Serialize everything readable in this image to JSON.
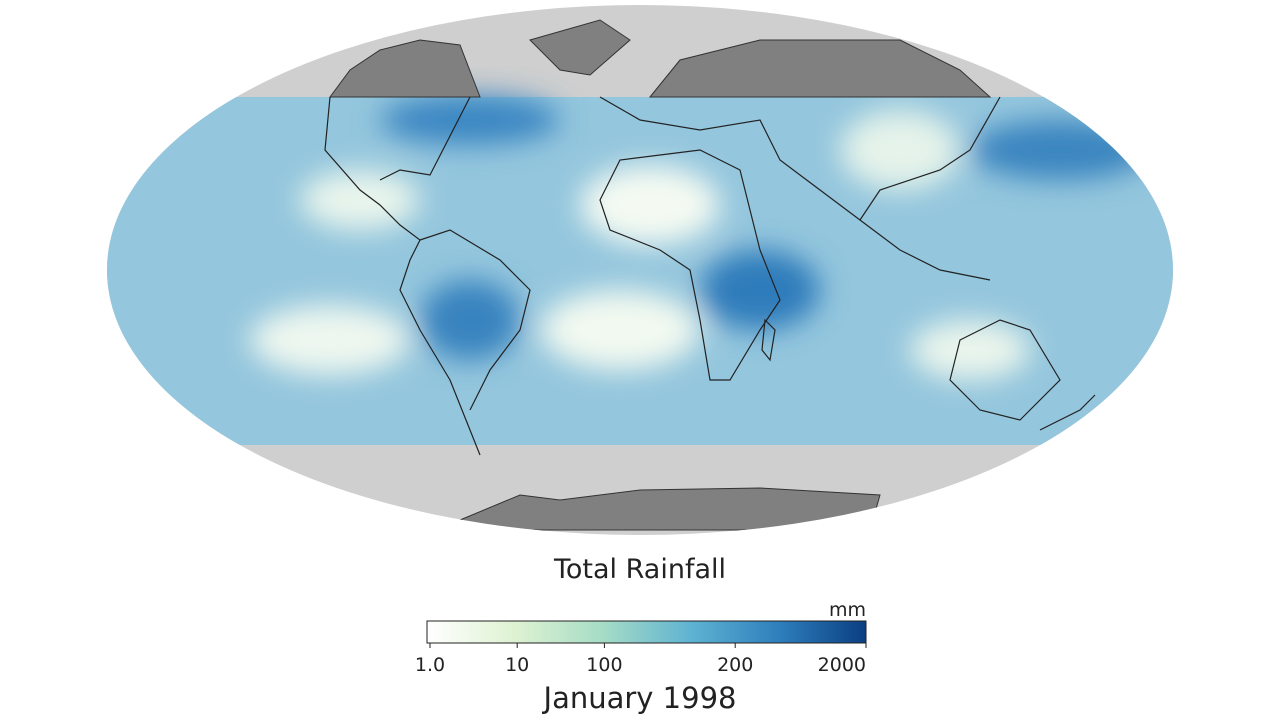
{
  "title": "Total Rainfall",
  "colorbar": {
    "unit": "mm",
    "ticks": [
      {
        "value": 1,
        "label": "1.0"
      },
      10,
      100,
      200,
      2000
    ]
  },
  "date": "January 1998"
}
